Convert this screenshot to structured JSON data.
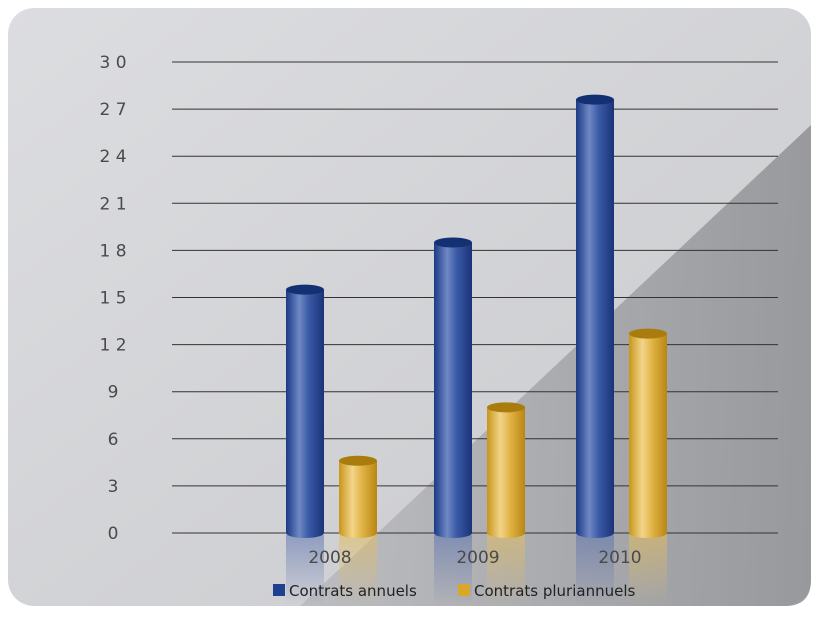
{
  "chart_data": {
    "type": "bar",
    "categories": [
      "2008",
      "2009",
      "2010"
    ],
    "series": [
      {
        "name": "Contrats annuels",
        "values": [
          15.5,
          18.5,
          27.6
        ]
      },
      {
        "name": "Contrats pluriannuels",
        "values": [
          4.6,
          8.0,
          12.7
        ]
      }
    ],
    "yticks": [
      "0",
      "3",
      "6",
      "9",
      "1 2",
      "1 5",
      "1 8",
      "2 1",
      "2 4",
      "2 7",
      "3 0"
    ],
    "ylim": [
      0,
      30
    ],
    "grid": true,
    "legend": "bottom",
    "colors": {
      "series1": "#1f3f8f",
      "series2": "#d9a82a",
      "panel": "#d3d4d6",
      "grid": "#333333",
      "text": "#4a4a4a"
    }
  }
}
